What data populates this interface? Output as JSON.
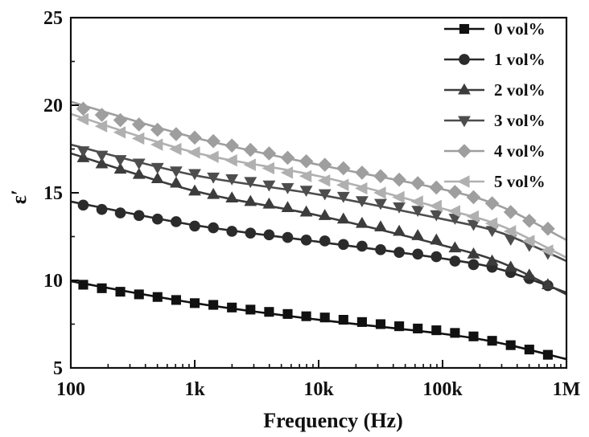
{
  "chart_data": {
    "type": "line",
    "title": "",
    "xlabel": "Frequency (Hz)",
    "ylabel": "ε′",
    "xscale": "log",
    "xlim": [
      100,
      1000000
    ],
    "ylim": [
      5,
      25
    ],
    "xticks": [
      {
        "value": 100,
        "label": "100"
      },
      {
        "value": 1000,
        "label": "1k"
      },
      {
        "value": 10000,
        "label": "10k"
      },
      {
        "value": 100000,
        "label": "100k"
      },
      {
        "value": 1000000,
        "label": "1M"
      }
    ],
    "yticks": [
      {
        "value": 5,
        "label": "5"
      },
      {
        "value": 10,
        "label": "10"
      },
      {
        "value": 15,
        "label": "15"
      },
      {
        "value": 20,
        "label": "20"
      },
      {
        "value": 25,
        "label": "25"
      }
    ],
    "legend_position": "top-right",
    "grid": false,
    "series": [
      {
        "name": "0 vol%",
        "marker": "square",
        "color": "#111111",
        "line": [
          [
            100,
            9.95
          ],
          [
            1000,
            8.7
          ],
          [
            10000,
            7.75
          ],
          [
            100000,
            6.95
          ],
          [
            300000,
            6.4
          ],
          [
            1000000,
            5.5
          ]
        ],
        "x": [
          126,
          178,
          251,
          355,
          501,
          708,
          1000,
          1413,
          1995,
          2818,
          3981,
          5623,
          7943,
          11220,
          15850,
          22390,
          31620,
          44670,
          63100,
          89130,
          125900,
          177800,
          251200,
          354800,
          501200,
          707900
        ],
        "y": [
          9.75,
          9.55,
          9.35,
          9.2,
          9.05,
          8.88,
          8.7,
          8.6,
          8.45,
          8.33,
          8.2,
          8.08,
          7.95,
          7.88,
          7.75,
          7.62,
          7.5,
          7.38,
          7.25,
          7.15,
          7.0,
          6.8,
          6.55,
          6.3,
          6.05,
          5.75
        ]
      },
      {
        "name": "1 vol%",
        "marker": "circle",
        "color": "#2b2b2b",
        "line": [
          [
            100,
            14.5
          ],
          [
            1000,
            13.15
          ],
          [
            10000,
            12.2
          ],
          [
            100000,
            11.25
          ],
          [
            300000,
            10.6
          ],
          [
            1000000,
            9.3
          ]
        ],
        "x": [
          126,
          178,
          251,
          355,
          501,
          708,
          1000,
          1413,
          1995,
          2818,
          3981,
          5623,
          7943,
          11220,
          15850,
          22390,
          31620,
          44670,
          63100,
          89130,
          125900,
          177800,
          251200,
          354800,
          501200,
          707900
        ],
        "y": [
          14.3,
          14.05,
          13.85,
          13.7,
          13.5,
          13.35,
          13.1,
          13.0,
          12.8,
          12.7,
          12.6,
          12.45,
          12.3,
          12.25,
          12.05,
          11.95,
          11.75,
          11.6,
          11.5,
          11.35,
          11.1,
          10.9,
          10.75,
          10.45,
          10.1,
          9.7
        ]
      },
      {
        "name": "2 vol%",
        "marker": "triangle-up",
        "color": "#3c3c3c",
        "line": [
          [
            100,
            17.25
          ],
          [
            1000,
            15.1
          ],
          [
            10000,
            13.7
          ],
          [
            100000,
            12.0
          ],
          [
            300000,
            11.0
          ],
          [
            1000000,
            9.2
          ]
        ],
        "x": [
          126,
          178,
          251,
          355,
          501,
          708,
          1000,
          1413,
          1995,
          2818,
          3981,
          5623,
          7943,
          11220,
          15850,
          22390,
          31620,
          44670,
          63100,
          89130,
          125900,
          177800,
          251200,
          354800,
          501200,
          707900
        ],
        "y": [
          17.0,
          16.65,
          16.35,
          16.05,
          15.8,
          15.55,
          15.1,
          14.9,
          14.7,
          14.5,
          14.35,
          14.15,
          13.9,
          13.7,
          13.5,
          13.25,
          13.05,
          12.8,
          12.55,
          12.3,
          11.85,
          11.5,
          11.1,
          10.75,
          10.3,
          9.75
        ]
      },
      {
        "name": "3 vol%",
        "marker": "triangle-down",
        "color": "#4d4d4d",
        "line": [
          [
            100,
            17.75
          ],
          [
            1000,
            16.0
          ],
          [
            10000,
            14.9
          ],
          [
            100000,
            13.5
          ],
          [
            300000,
            12.7
          ],
          [
            1000000,
            11.1
          ]
        ],
        "x": [
          126,
          178,
          251,
          355,
          501,
          708,
          1000,
          1413,
          1995,
          2818,
          3981,
          5623,
          7943,
          11220,
          15850,
          22390,
          31620,
          44670,
          63100,
          89130,
          125900,
          177800,
          251200,
          354800,
          501200,
          707900
        ],
        "y": [
          17.4,
          17.15,
          16.9,
          16.7,
          16.45,
          16.25,
          16.1,
          15.9,
          15.8,
          15.65,
          15.45,
          15.3,
          15.15,
          14.95,
          14.8,
          14.55,
          14.4,
          14.2,
          14.0,
          13.75,
          13.55,
          13.2,
          12.85,
          12.35,
          12.0,
          11.55
        ]
      },
      {
        "name": "4 vol%",
        "marker": "diamond",
        "color": "#9e9e9e",
        "line": [
          [
            100,
            20.2
          ],
          [
            1000,
            18.15
          ],
          [
            10000,
            16.6
          ],
          [
            100000,
            15.2
          ],
          [
            300000,
            14.2
          ],
          [
            1000000,
            12.3
          ]
        ],
        "x": [
          126,
          178,
          251,
          355,
          501,
          708,
          1000,
          1413,
          1995,
          2818,
          3981,
          5623,
          7943,
          11220,
          15850,
          22390,
          31620,
          44670,
          63100,
          89130,
          125900,
          177800,
          251200,
          354800,
          501200,
          707900
        ],
        "y": [
          19.8,
          19.45,
          19.15,
          18.9,
          18.6,
          18.35,
          18.15,
          17.95,
          17.7,
          17.45,
          17.25,
          17.0,
          16.8,
          16.6,
          16.4,
          16.15,
          15.95,
          15.75,
          15.55,
          15.3,
          15.05,
          14.75,
          14.4,
          13.9,
          13.4,
          12.95
        ]
      },
      {
        "name": "5 vol%",
        "marker": "triangle-left",
        "color": "#b0b0b0",
        "line": [
          [
            100,
            19.5
          ],
          [
            1000,
            17.3
          ],
          [
            10000,
            15.95
          ],
          [
            100000,
            14.1
          ],
          [
            300000,
            13.1
          ],
          [
            1000000,
            11.3
          ]
        ],
        "x": [
          126,
          178,
          251,
          355,
          501,
          708,
          1000,
          1413,
          1995,
          2818,
          3981,
          5623,
          7943,
          11220,
          15850,
          22390,
          31620,
          44670,
          63100,
          89130,
          125900,
          177800,
          251200,
          354800,
          501200,
          707900
        ],
        "y": [
          19.2,
          18.8,
          18.45,
          18.1,
          17.75,
          17.5,
          17.3,
          17.05,
          16.85,
          16.6,
          16.4,
          16.15,
          15.95,
          15.7,
          15.45,
          15.25,
          15.0,
          14.75,
          14.5,
          14.25,
          13.95,
          13.65,
          13.25,
          12.8,
          12.25,
          11.7
        ]
      }
    ]
  }
}
